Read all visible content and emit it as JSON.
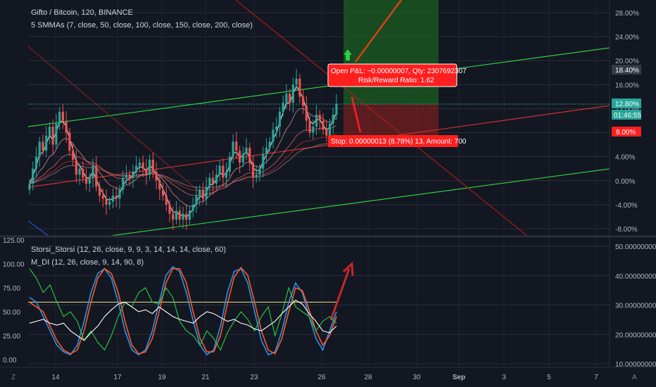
{
  "header": {
    "symbol_line": "Gifto / Bitcoin, 120, BINANCE",
    "smma_line": "5 SMMAs (7, close, 50, close, 100, close, 150, close, 200, close)",
    "stoch_line": "Storsi_Storsi (12, 26, close, 9, 9, 3, 14, 14, 14, close, 60)",
    "mdi_line": "M_DI (12, 26, close, 9, 14, 90, 8)"
  },
  "price_tags": {
    "upper": "18.40%",
    "current": "12.80%",
    "countdown": "01:46:55",
    "stop": "8.00%"
  },
  "trade_box": {
    "line1": "Open P&L: −0.00000007, Qty: 2307692307",
    "line2": "Risk/Reward Ratio: 1.62",
    "stop": "Stop: 0.00000013 (8.78%) 13, Amount: 700"
  },
  "bottom_icons": {
    "left": "Z",
    "right": "A"
  },
  "colors": {
    "background": "#131722",
    "up": "#26a69a",
    "down": "#ef5350",
    "green_line": "#2ecc40",
    "red_line": "#d32f2f",
    "target_zone": "#1b5e20",
    "stop_zone": "#7b1f1f",
    "box_red": "#ff1f1f"
  },
  "chart_data": [
    {
      "type": "candlestick",
      "x_ticks": [
        "14",
        "17",
        "19",
        "21",
        "23",
        "26",
        "28",
        "30",
        "Sep",
        "3",
        "5",
        "7"
      ],
      "y_ticks": [
        "28.00%",
        "24.00%",
        "20.00%",
        "16.00%",
        "12.00%",
        "8.00%",
        "4.00%",
        "0.00%",
        "-4.00%",
        "-8.00%"
      ],
      "ylim": [
        -9,
        30
      ],
      "close_pct": [
        -0.5,
        2,
        4,
        6.5,
        5,
        7.5,
        9,
        6,
        9.5,
        11.5,
        10,
        8,
        5,
        3.5,
        1,
        2,
        0.5,
        -0.5,
        0.5,
        2.5,
        -1,
        -2.5,
        -3,
        -4,
        -3.5,
        -2.5,
        -3,
        -1.5,
        0.5,
        1,
        0.5,
        1.5,
        2.5,
        3,
        2,
        1,
        3.5,
        1.5,
        0,
        -1.5,
        -2.5,
        -4,
        -5.5,
        -6.5,
        -5,
        -6.5,
        -5.5,
        -6.5,
        -5,
        -4,
        -2.5,
        -1.5,
        -3,
        -1,
        0.5,
        -0.5,
        1,
        2.5,
        0.5,
        1.5,
        4,
        6.5,
        5,
        3,
        4.5,
        5.5,
        3,
        0.5,
        1,
        2,
        4.5,
        5.5,
        6.5,
        8.5,
        9,
        11.5,
        13,
        14.5,
        13,
        16,
        17,
        14,
        12.5,
        10,
        8,
        9,
        11,
        10,
        8.5,
        7.5,
        9.5,
        11,
        12.8
      ],
      "smma_periods": [
        7,
        50,
        100,
        150,
        200
      ]
    },
    {
      "type": "line",
      "title": "Storsi_Storsi (12, 26, close, 9, 9, 3, 14, 14, 14, close, 60)",
      "y_ticks_left": [
        "125.00",
        "100.00",
        "75.00",
        "50.00",
        "25.00",
        "0.00"
      ],
      "y_ticks_right": [
        "50.00000000",
        "40.00000000",
        "30.00000000",
        "20.00000000",
        "10.00000000"
      ],
      "ylim_left": [
        -5,
        125
      ],
      "ylim_right": [
        10,
        50
      ],
      "threshold": 60,
      "series": [
        {
          "values": [
            65,
            60,
            45,
            30,
            15,
            8,
            5,
            15,
            40,
            70,
            90,
            95,
            85,
            60,
            30,
            10,
            5,
            10,
            30,
            60,
            88,
            97,
            92,
            70,
            40,
            15,
            5,
            10,
            35,
            70,
            92,
            95,
            80,
            50,
            20,
            5,
            8,
            30,
            60,
            80,
            70,
            45,
            22,
            10,
            30,
            50
          ]
        },
        {
          "values": [
            60,
            55,
            50,
            35,
            20,
            10,
            6,
            10,
            30,
            60,
            85,
            95,
            90,
            70,
            40,
            15,
            6,
            8,
            22,
            50,
            80,
            95,
            95,
            80,
            50,
            22,
            8,
            8,
            25,
            58,
            86,
            96,
            88,
            60,
            30,
            10,
            6,
            22,
            50,
            75,
            72,
            52,
            30,
            15,
            25,
            45
          ]
        },
        {
          "values": [
            95,
            85,
            70,
            78,
            60,
            45,
            50,
            40,
            20,
            30,
            18,
            10,
            25,
            45,
            60,
            55,
            70,
            75,
            60,
            58,
            75,
            65,
            40,
            30,
            25,
            15,
            30,
            22,
            10,
            28,
            40,
            50,
            42,
            30,
            45,
            55,
            25,
            48,
            75,
            55,
            50,
            45,
            30,
            40,
            45,
            38
          ]
        },
        {
          "values": [
            38,
            40,
            42,
            38,
            36,
            38,
            30,
            25,
            20,
            28,
            35,
            45,
            52,
            58,
            60,
            55,
            50,
            52,
            48,
            55,
            50,
            45,
            42,
            40,
            38,
            45,
            50,
            48,
            44,
            40,
            42,
            38,
            36,
            32,
            30,
            35,
            40,
            48,
            55,
            62,
            58,
            48,
            40,
            30,
            28,
            35
          ]
        }
      ]
    }
  ]
}
